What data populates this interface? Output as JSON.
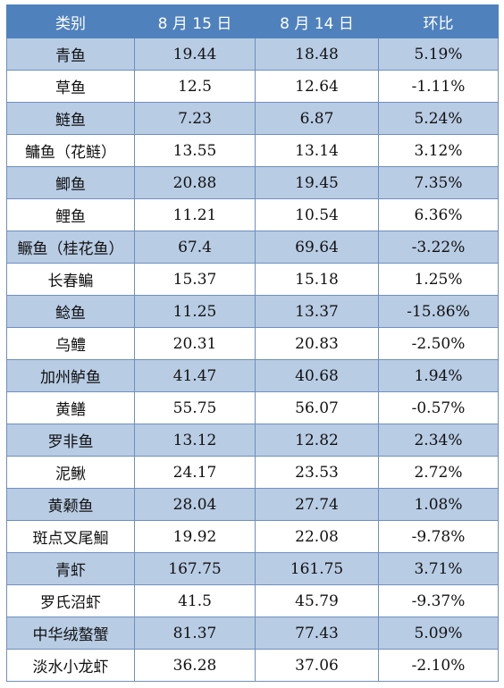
{
  "table": {
    "headers": [
      "类别",
      "8 月 15 日",
      "8 月 14 日",
      "环比"
    ],
    "rows": [
      [
        "青鱼",
        "19.44",
        "18.48",
        "5.19%"
      ],
      [
        "草鱼",
        "12.5",
        "12.64",
        "-1.11%"
      ],
      [
        "鲢鱼",
        "7.23",
        "6.87",
        "5.24%"
      ],
      [
        "鳙鱼（花鲢）",
        "13.55",
        "13.14",
        "3.12%"
      ],
      [
        "鲫鱼",
        "20.88",
        "19.45",
        "7.35%"
      ],
      [
        "鲤鱼",
        "11.21",
        "10.54",
        "6.36%"
      ],
      [
        "鳜鱼（桂花鱼）",
        "67.4",
        "69.64",
        "-3.22%"
      ],
      [
        "长春鳊",
        "15.37",
        "15.18",
        "1.25%"
      ],
      [
        "鲶鱼",
        "11.25",
        "13.37",
        "-15.86%"
      ],
      [
        "乌鳢",
        "20.31",
        "20.83",
        "-2.50%"
      ],
      [
        "加州鲈鱼",
        "41.47",
        "40.68",
        "1.94%"
      ],
      [
        "黄鳝",
        "55.75",
        "56.07",
        "-0.57%"
      ],
      [
        "罗非鱼",
        "13.12",
        "12.82",
        "2.34%"
      ],
      [
        "泥鳅",
        "24.17",
        "23.53",
        "2.72%"
      ],
      [
        "黄颡鱼",
        "28.04",
        "27.74",
        "1.08%"
      ],
      [
        "斑点叉尾鮰",
        "19.92",
        "22.08",
        "-9.78%"
      ],
      [
        "青虾",
        "167.75",
        "161.75",
        "3.71%"
      ],
      [
        "罗氏沼虾",
        "41.5",
        "45.79",
        "-9.37%"
      ],
      [
        "中华绒螯蟹",
        "81.37",
        "77.43",
        "5.09%"
      ],
      [
        "淡水小龙虾",
        "36.28",
        "37.06",
        "-2.10%"
      ]
    ]
  },
  "colors": {
    "header_bg": "#4f81bd",
    "band_bg": "#b8cce4",
    "border": "#6f8fc0"
  }
}
